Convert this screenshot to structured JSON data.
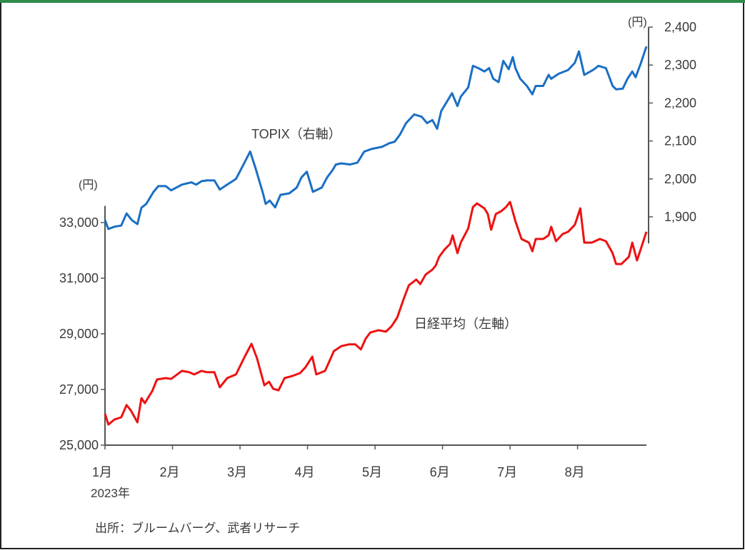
{
  "chart_data": {
    "type": "line",
    "title": "",
    "xlabel": "",
    "x_ticks": [
      "1月",
      "2月",
      "3月",
      "4月",
      "5月",
      "6月",
      "7月",
      "8月"
    ],
    "x_year_label": "2023年",
    "x_unit": "months since 2023-01-01",
    "xlim": [
      0,
      8.02
    ],
    "left_axis": {
      "unit_label": "(円)",
      "ticks": [
        "25,000",
        "27,000",
        "29,000",
        "31,000",
        "33,000"
      ],
      "tick_values": [
        25000,
        27000,
        29000,
        31000,
        33000
      ],
      "ylim": [
        25000,
        33600
      ]
    },
    "right_axis": {
      "unit_label": "(円)",
      "ticks": [
        "1,900",
        "2,000",
        "2,100",
        "2,200",
        "2,300",
        "2,400"
      ],
      "tick_values": [
        1900,
        2000,
        2100,
        2200,
        2300,
        2400
      ],
      "ylim": [
        1830,
        2400
      ]
    },
    "grid": false,
    "series": [
      {
        "name": "TOPIX",
        "label": "TOPIX（右軸）",
        "axis": "right",
        "color": "#1a6fc4",
        "points": [
          [
            0,
            1892
          ],
          [
            0.05,
            1868
          ],
          [
            0.14,
            1874
          ],
          [
            0.24,
            1877
          ],
          [
            0.32,
            1909
          ],
          [
            0.4,
            1891
          ],
          [
            0.48,
            1881
          ],
          [
            0.54,
            1924
          ],
          [
            0.61,
            1934
          ],
          [
            0.72,
            1966
          ],
          [
            0.79,
            1981
          ],
          [
            0.9,
            1981
          ],
          [
            0.98,
            1970
          ],
          [
            1.14,
            1985
          ],
          [
            1.28,
            1991
          ],
          [
            1.35,
            1985
          ],
          [
            1.43,
            1994
          ],
          [
            1.51,
            1996
          ],
          [
            1.62,
            1996
          ],
          [
            1.7,
            1972
          ],
          [
            1.81,
            1985
          ],
          [
            1.94,
            2000
          ],
          [
            2.04,
            2034
          ],
          [
            2.15,
            2072
          ],
          [
            2.23,
            2028
          ],
          [
            2.34,
            1962
          ],
          [
            2.38,
            1934
          ],
          [
            2.44,
            1943
          ],
          [
            2.52,
            1925
          ],
          [
            2.6,
            1958
          ],
          [
            2.73,
            1962
          ],
          [
            2.84,
            1977
          ],
          [
            2.91,
            2004
          ],
          [
            2.99,
            2019
          ],
          [
            3.08,
            1966
          ],
          [
            3.21,
            1977
          ],
          [
            3.29,
            2004
          ],
          [
            3.37,
            2023
          ],
          [
            3.42,
            2038
          ],
          [
            3.5,
            2041
          ],
          [
            3.63,
            2038
          ],
          [
            3.74,
            2043
          ],
          [
            3.84,
            2072
          ],
          [
            3.95,
            2079
          ],
          [
            4.11,
            2085
          ],
          [
            4.21,
            2094
          ],
          [
            4.29,
            2098
          ],
          [
            4.37,
            2117
          ],
          [
            4.46,
            2147
          ],
          [
            4.58,
            2170
          ],
          [
            4.69,
            2164
          ],
          [
            4.77,
            2147
          ],
          [
            4.85,
            2155
          ],
          [
            4.92,
            2132
          ],
          [
            4.98,
            2179
          ],
          [
            5.06,
            2202
          ],
          [
            5.14,
            2226
          ],
          [
            5.22,
            2192
          ],
          [
            5.27,
            2217
          ],
          [
            5.38,
            2241
          ],
          [
            5.45,
            2298
          ],
          [
            5.53,
            2292
          ],
          [
            5.62,
            2283
          ],
          [
            5.69,
            2292
          ],
          [
            5.75,
            2264
          ],
          [
            5.83,
            2255
          ],
          [
            5.9,
            2311
          ],
          [
            5.98,
            2289
          ],
          [
            6.04,
            2321
          ],
          [
            6.08,
            2292
          ],
          [
            6.15,
            2264
          ],
          [
            6.25,
            2245
          ],
          [
            6.33,
            2223
          ],
          [
            6.38,
            2245
          ],
          [
            6.49,
            2245
          ],
          [
            6.57,
            2274
          ],
          [
            6.61,
            2264
          ],
          [
            6.72,
            2277
          ],
          [
            6.86,
            2287
          ],
          [
            6.96,
            2306
          ],
          [
            7.02,
            2336
          ],
          [
            7.1,
            2274
          ],
          [
            7.23,
            2287
          ],
          [
            7.31,
            2298
          ],
          [
            7.42,
            2292
          ],
          [
            7.52,
            2245
          ],
          [
            7.57,
            2236
          ],
          [
            7.67,
            2238
          ],
          [
            7.74,
            2264
          ],
          [
            7.81,
            2283
          ],
          [
            7.86,
            2268
          ],
          [
            7.94,
            2306
          ],
          [
            8.02,
            2349
          ]
        ]
      },
      {
        "name": "日経平均",
        "label": "日経平均（左軸）",
        "axis": "left",
        "color": "#ee1111",
        "points": [
          [
            0,
            26130
          ],
          [
            0.05,
            25740
          ],
          [
            0.14,
            25920
          ],
          [
            0.24,
            26000
          ],
          [
            0.32,
            26440
          ],
          [
            0.38,
            26260
          ],
          [
            0.48,
            25820
          ],
          [
            0.54,
            26690
          ],
          [
            0.59,
            26510
          ],
          [
            0.7,
            26950
          ],
          [
            0.77,
            27360
          ],
          [
            0.9,
            27410
          ],
          [
            0.98,
            27380
          ],
          [
            1.14,
            27670
          ],
          [
            1.25,
            27620
          ],
          [
            1.32,
            27540
          ],
          [
            1.43,
            27670
          ],
          [
            1.51,
            27620
          ],
          [
            1.62,
            27620
          ],
          [
            1.7,
            27080
          ],
          [
            1.81,
            27410
          ],
          [
            1.94,
            27540
          ],
          [
            2.07,
            28180
          ],
          [
            2.17,
            28640
          ],
          [
            2.25,
            28130
          ],
          [
            2.36,
            27150
          ],
          [
            2.43,
            27280
          ],
          [
            2.49,
            27030
          ],
          [
            2.57,
            26970
          ],
          [
            2.66,
            27410
          ],
          [
            2.78,
            27490
          ],
          [
            2.89,
            27590
          ],
          [
            2.97,
            27800
          ],
          [
            3.07,
            28180
          ],
          [
            3.13,
            27540
          ],
          [
            3.26,
            27670
          ],
          [
            3.33,
            28050
          ],
          [
            3.39,
            28380
          ],
          [
            3.5,
            28560
          ],
          [
            3.61,
            28620
          ],
          [
            3.71,
            28620
          ],
          [
            3.79,
            28440
          ],
          [
            3.86,
            28820
          ],
          [
            3.93,
            29050
          ],
          [
            4.05,
            29130
          ],
          [
            4.16,
            29080
          ],
          [
            4.24,
            29260
          ],
          [
            4.33,
            29590
          ],
          [
            4.42,
            30230
          ],
          [
            4.5,
            30740
          ],
          [
            4.61,
            30950
          ],
          [
            4.67,
            30790
          ],
          [
            4.75,
            31130
          ],
          [
            4.85,
            31310
          ],
          [
            4.9,
            31460
          ],
          [
            4.95,
            31770
          ],
          [
            5.03,
            32030
          ],
          [
            5.11,
            32230
          ],
          [
            5.15,
            32540
          ],
          [
            5.22,
            31900
          ],
          [
            5.27,
            32280
          ],
          [
            5.38,
            32790
          ],
          [
            5.45,
            33560
          ],
          [
            5.51,
            33690
          ],
          [
            5.62,
            33510
          ],
          [
            5.67,
            33310
          ],
          [
            5.72,
            32740
          ],
          [
            5.79,
            33310
          ],
          [
            5.87,
            33410
          ],
          [
            5.94,
            33560
          ],
          [
            6.0,
            33740
          ],
          [
            6.08,
            33050
          ],
          [
            6.17,
            32410
          ],
          [
            6.28,
            32280
          ],
          [
            6.33,
            31970
          ],
          [
            6.38,
            32410
          ],
          [
            6.49,
            32410
          ],
          [
            6.57,
            32540
          ],
          [
            6.61,
            32850
          ],
          [
            6.68,
            32330
          ],
          [
            6.78,
            32590
          ],
          [
            6.86,
            32670
          ],
          [
            6.96,
            32920
          ],
          [
            7.04,
            33510
          ],
          [
            7.1,
            32280
          ],
          [
            7.21,
            32280
          ],
          [
            7.33,
            32410
          ],
          [
            7.42,
            32330
          ],
          [
            7.52,
            31900
          ],
          [
            7.57,
            31510
          ],
          [
            7.65,
            31510
          ],
          [
            7.76,
            31770
          ],
          [
            7.81,
            32280
          ],
          [
            7.88,
            31640
          ],
          [
            7.95,
            32150
          ],
          [
            8.02,
            32670
          ]
        ]
      }
    ],
    "annotations": [
      "TOPIX（右軸）",
      "日経平均（左軸）"
    ],
    "source": "出所：ブルームバーグ、武者リサーチ",
    "colors": {
      "frame_top": "#2e8b4a",
      "frame": "#222222",
      "axis": "#555555"
    }
  }
}
